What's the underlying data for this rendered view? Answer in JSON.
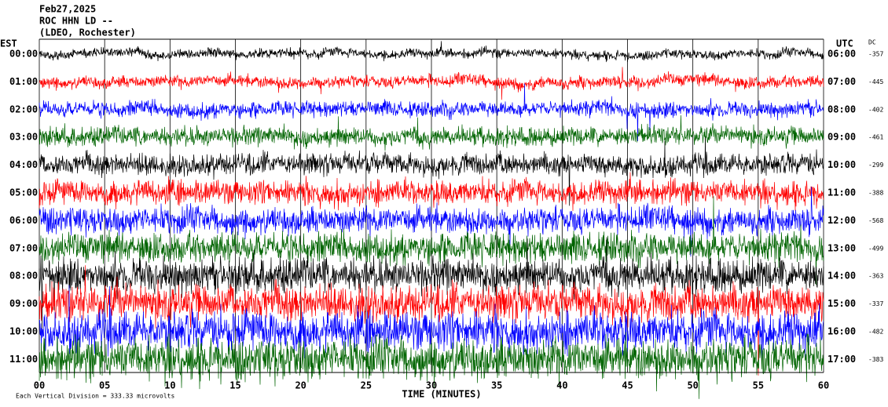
{
  "header": {
    "date": "Feb27,2025",
    "station": "ROC HHN LD --",
    "location": "(LDEO, Rochester)"
  },
  "left_label": "EST",
  "right_label": "UTC",
  "dc_label": "DC",
  "rows": [
    {
      "est": "00:00",
      "utc": "06:00",
      "dc": "-357"
    },
    {
      "est": "01:00",
      "utc": "07:00",
      "dc": "-445"
    },
    {
      "est": "02:00",
      "utc": "08:00",
      "dc": "-402"
    },
    {
      "est": "03:00",
      "utc": "09:00",
      "dc": "-461"
    },
    {
      "est": "04:00",
      "utc": "10:00",
      "dc": "-299"
    },
    {
      "est": "05:00",
      "utc": "11:00",
      "dc": "-388"
    },
    {
      "est": "06:00",
      "utc": "12:00",
      "dc": "-568"
    },
    {
      "est": "07:00",
      "utc": "13:00",
      "dc": "-499"
    },
    {
      "est": "08:00",
      "utc": "14:00",
      "dc": "-363"
    },
    {
      "est": "09:00",
      "utc": "15:00",
      "dc": "-337"
    },
    {
      "est": "10:00",
      "utc": "16:00",
      "dc": "-482"
    },
    {
      "est": "11:00",
      "utc": "17:00",
      "dc": "-383"
    }
  ],
  "x_ticks": [
    "00",
    "05",
    "10",
    "15",
    "20",
    "25",
    "30",
    "35",
    "40",
    "45",
    "50",
    "55",
    "60"
  ],
  "x_label": "TIME (MINUTES)",
  "footer": "Each Vertical Division = 333.33 microvolts"
}
